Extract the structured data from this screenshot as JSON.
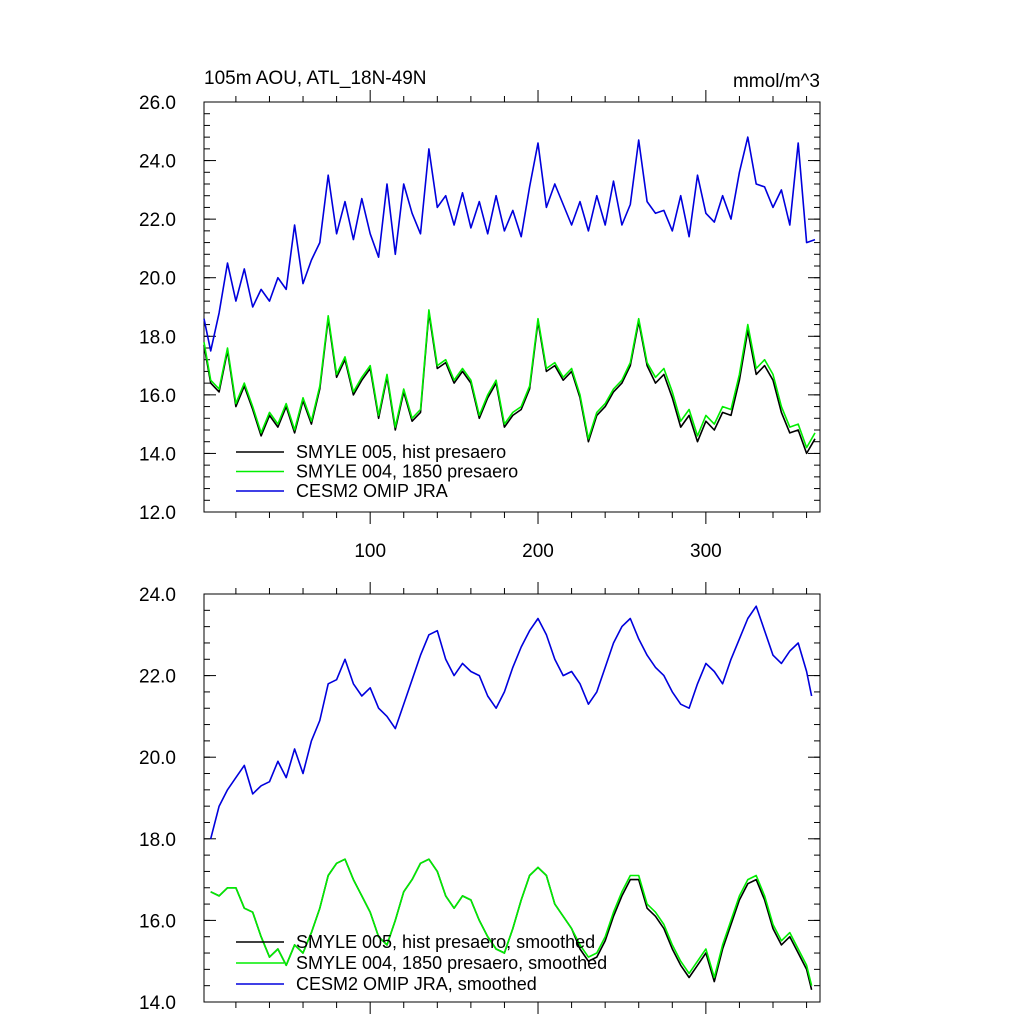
{
  "chart_data": [
    {
      "type": "line",
      "title": "105m AOU, ATL_18N-49N",
      "units": "mmol/m^3",
      "xlabel": "",
      "ylabel": "",
      "xlim": [
        1,
        368
      ],
      "ylim": [
        12.0,
        26.0
      ],
      "x_ticks": [
        100,
        200,
        300
      ],
      "x_tick_labels": [
        "100",
        "200",
        "300"
      ],
      "y_ticks": [
        12.0,
        14.0,
        16.0,
        18.0,
        20.0,
        22.0,
        24.0,
        26.0
      ],
      "y_tick_labels": [
        "12.0",
        "14.0",
        "16.0",
        "18.0",
        "20.0",
        "22.0",
        "24.0",
        "26.0"
      ],
      "grid": false,
      "legend_position": "bottom-left",
      "series": [
        {
          "name": "SMYLE 005, hist presaero",
          "color": "#000000",
          "x": [
            1,
            5,
            10,
            15,
            20,
            25,
            30,
            35,
            40,
            45,
            50,
            55,
            60,
            65,
            70,
            75,
            80,
            85,
            90,
            95,
            100,
            105,
            110,
            115,
            120,
            125,
            130,
            135,
            140,
            145,
            150,
            155,
            160,
            165,
            170,
            175,
            180,
            185,
            190,
            195,
            200,
            205,
            210,
            215,
            220,
            225,
            230,
            235,
            240,
            245,
            250,
            255,
            260,
            265,
            270,
            275,
            280,
            285,
            290,
            295,
            300,
            305,
            310,
            315,
            320,
            325,
            330,
            335,
            340,
            345,
            350,
            355,
            360,
            365
          ],
          "values": [
            17.7,
            16.4,
            16.1,
            17.5,
            15.6,
            16.3,
            15.5,
            14.6,
            15.3,
            14.9,
            15.6,
            14.7,
            15.8,
            15.0,
            16.2,
            18.6,
            16.6,
            17.2,
            16.0,
            16.5,
            16.9,
            15.2,
            16.6,
            14.8,
            16.1,
            15.1,
            15.4,
            18.8,
            16.9,
            17.1,
            16.4,
            16.8,
            16.4,
            15.2,
            15.9,
            16.4,
            14.9,
            15.3,
            15.5,
            16.2,
            18.5,
            16.8,
            17.0,
            16.5,
            16.8,
            15.9,
            14.4,
            15.3,
            15.6,
            16.1,
            16.4,
            17.0,
            18.5,
            17.0,
            16.4,
            16.7,
            15.9,
            14.9,
            15.3,
            14.4,
            15.1,
            14.8,
            15.4,
            15.3,
            16.5,
            18.2,
            16.7,
            17.0,
            16.5,
            15.4,
            14.7,
            14.8,
            14.0,
            14.5
          ]
        },
        {
          "name": "SMYLE 004, 1850 presaero",
          "color": "#00ee00",
          "x": [
            1,
            5,
            10,
            15,
            20,
            25,
            30,
            35,
            40,
            45,
            50,
            55,
            60,
            65,
            70,
            75,
            80,
            85,
            90,
            95,
            100,
            105,
            110,
            115,
            120,
            125,
            130,
            135,
            140,
            145,
            150,
            155,
            160,
            165,
            170,
            175,
            180,
            185,
            190,
            195,
            200,
            205,
            210,
            215,
            220,
            225,
            230,
            235,
            240,
            245,
            250,
            255,
            260,
            265,
            270,
            275,
            280,
            285,
            290,
            295,
            300,
            305,
            310,
            315,
            320,
            325,
            330,
            335,
            340,
            345,
            350,
            355,
            360,
            365
          ],
          "values": [
            17.8,
            16.5,
            16.2,
            17.6,
            15.7,
            16.4,
            15.6,
            14.7,
            15.4,
            15.0,
            15.7,
            14.8,
            15.9,
            15.1,
            16.3,
            18.7,
            16.7,
            17.3,
            16.1,
            16.6,
            17.0,
            15.3,
            16.7,
            14.9,
            16.2,
            15.2,
            15.5,
            18.9,
            17.0,
            17.2,
            16.5,
            16.9,
            16.5,
            15.3,
            16.0,
            16.5,
            15.0,
            15.4,
            15.6,
            16.3,
            18.6,
            16.9,
            17.1,
            16.6,
            16.9,
            16.0,
            14.5,
            15.4,
            15.7,
            16.2,
            16.5,
            17.1,
            18.6,
            17.1,
            16.6,
            16.9,
            16.1,
            15.1,
            15.5,
            14.6,
            15.3,
            15.0,
            15.6,
            15.5,
            16.7,
            18.4,
            16.9,
            17.2,
            16.7,
            15.6,
            14.9,
            15.0,
            14.2,
            14.7
          ]
        },
        {
          "name": "CESM2 OMIP JRA",
          "color": "#0000dd",
          "x": [
            1,
            5,
            10,
            15,
            20,
            25,
            30,
            35,
            40,
            45,
            50,
            55,
            60,
            65,
            70,
            75,
            80,
            85,
            90,
            95,
            100,
            105,
            110,
            115,
            120,
            125,
            130,
            135,
            140,
            145,
            150,
            155,
            160,
            165,
            170,
            175,
            180,
            185,
            190,
            195,
            200,
            205,
            210,
            215,
            220,
            225,
            230,
            235,
            240,
            245,
            250,
            255,
            260,
            265,
            270,
            275,
            280,
            285,
            290,
            295,
            300,
            305,
            310,
            315,
            320,
            325,
            330,
            335,
            340,
            345,
            350,
            355,
            360,
            365
          ],
          "values": [
            18.6,
            17.5,
            18.8,
            20.5,
            19.2,
            20.3,
            19.0,
            19.6,
            19.2,
            20.0,
            19.6,
            21.8,
            19.8,
            20.6,
            21.2,
            23.5,
            21.5,
            22.6,
            21.3,
            22.7,
            21.5,
            20.7,
            23.2,
            20.8,
            23.2,
            22.2,
            21.5,
            24.4,
            22.4,
            22.8,
            21.8,
            22.9,
            21.7,
            22.6,
            21.5,
            22.8,
            21.6,
            22.3,
            21.4,
            23.1,
            24.6,
            22.4,
            23.2,
            22.5,
            21.8,
            22.6,
            21.6,
            22.8,
            21.8,
            23.3,
            21.8,
            22.5,
            24.7,
            22.6,
            22.2,
            22.3,
            21.6,
            22.8,
            21.4,
            23.5,
            22.2,
            21.9,
            22.8,
            22.0,
            23.6,
            24.8,
            23.2,
            23.1,
            22.4,
            23.0,
            21.8,
            24.6,
            21.2,
            21.3
          ]
        }
      ]
    },
    {
      "type": "line",
      "title": "",
      "xlabel": "",
      "ylabel": "",
      "xlim": [
        1,
        368
      ],
      "ylim": [
        14.0,
        24.0
      ],
      "x_ticks": [
        100,
        200,
        300
      ],
      "x_tick_labels": [],
      "y_ticks": [
        14.0,
        16.0,
        18.0,
        20.0,
        22.0,
        24.0
      ],
      "y_tick_labels": [
        "14.0",
        "16.0",
        "18.0",
        "20.0",
        "22.0",
        "24.0"
      ],
      "grid": false,
      "legend_position": "bottom-left",
      "series": [
        {
          "name": "SMYLE 005, hist presaero, smoothed",
          "color": "#000000",
          "x": [
            5,
            10,
            15,
            20,
            25,
            30,
            35,
            40,
            45,
            50,
            55,
            60,
            65,
            70,
            75,
            80,
            85,
            90,
            95,
            100,
            105,
            110,
            115,
            120,
            125,
            130,
            135,
            140,
            145,
            150,
            155,
            160,
            165,
            170,
            175,
            180,
            185,
            190,
            195,
            200,
            205,
            210,
            215,
            220,
            225,
            230,
            235,
            240,
            245,
            250,
            255,
            260,
            265,
            270,
            275,
            280,
            285,
            290,
            295,
            300,
            305,
            310,
            315,
            320,
            325,
            330,
            335,
            340,
            345,
            350,
            355,
            360,
            363
          ],
          "values": [
            16.7,
            16.6,
            16.8,
            16.8,
            16.3,
            16.2,
            15.6,
            15.1,
            15.3,
            14.9,
            15.4,
            15.2,
            15.7,
            16.3,
            17.1,
            17.4,
            17.5,
            17.0,
            16.6,
            16.2,
            15.6,
            15.4,
            16.0,
            16.7,
            17.0,
            17.4,
            17.5,
            17.2,
            16.6,
            16.3,
            16.6,
            16.5,
            16.0,
            15.6,
            15.3,
            15.2,
            15.8,
            16.5,
            17.1,
            17.3,
            17.1,
            16.4,
            16.1,
            15.8,
            15.3,
            15.0,
            15.1,
            15.5,
            16.1,
            16.6,
            17.0,
            17.0,
            16.3,
            16.1,
            15.8,
            15.3,
            14.9,
            14.6,
            14.9,
            15.2,
            14.5,
            15.3,
            15.9,
            16.5,
            16.9,
            17.0,
            16.5,
            15.8,
            15.4,
            15.6,
            15.2,
            14.8,
            14.3
          ]
        },
        {
          "name": "SMYLE 004, 1850 presaero, smoothed",
          "color": "#00ee00",
          "x": [
            5,
            10,
            15,
            20,
            25,
            30,
            35,
            40,
            45,
            50,
            55,
            60,
            65,
            70,
            75,
            80,
            85,
            90,
            95,
            100,
            105,
            110,
            115,
            120,
            125,
            130,
            135,
            140,
            145,
            150,
            155,
            160,
            165,
            170,
            175,
            180,
            185,
            190,
            195,
            200,
            205,
            210,
            215,
            220,
            225,
            230,
            235,
            240,
            245,
            250,
            255,
            260,
            265,
            270,
            275,
            280,
            285,
            290,
            295,
            300,
            305,
            310,
            315,
            320,
            325,
            330,
            335,
            340,
            345,
            350,
            355,
            360,
            363
          ],
          "values": [
            16.7,
            16.6,
            16.8,
            16.8,
            16.3,
            16.2,
            15.6,
            15.1,
            15.3,
            14.9,
            15.4,
            15.2,
            15.7,
            16.3,
            17.1,
            17.4,
            17.5,
            17.0,
            16.6,
            16.2,
            15.6,
            15.4,
            16.0,
            16.7,
            17.0,
            17.4,
            17.5,
            17.2,
            16.6,
            16.3,
            16.6,
            16.5,
            16.0,
            15.6,
            15.3,
            15.2,
            15.8,
            16.5,
            17.1,
            17.3,
            17.1,
            16.4,
            16.1,
            15.8,
            15.4,
            15.1,
            15.2,
            15.6,
            16.2,
            16.7,
            17.1,
            17.1,
            16.4,
            16.2,
            15.9,
            15.4,
            15.0,
            14.7,
            15.0,
            15.3,
            14.6,
            15.4,
            16.0,
            16.6,
            17.0,
            17.1,
            16.6,
            15.9,
            15.5,
            15.7,
            15.3,
            14.9,
            14.4
          ]
        },
        {
          "name": "CESM2 OMIP JRA, smoothed",
          "color": "#0000dd",
          "x": [
            5,
            10,
            15,
            20,
            25,
            30,
            35,
            40,
            45,
            50,
            55,
            60,
            65,
            70,
            75,
            80,
            85,
            90,
            95,
            100,
            105,
            110,
            115,
            120,
            125,
            130,
            135,
            140,
            145,
            150,
            155,
            160,
            165,
            170,
            175,
            180,
            185,
            190,
            195,
            200,
            205,
            210,
            215,
            220,
            225,
            230,
            235,
            240,
            245,
            250,
            255,
            260,
            265,
            270,
            275,
            280,
            285,
            290,
            295,
            300,
            305,
            310,
            315,
            320,
            325,
            330,
            335,
            340,
            345,
            350,
            355,
            360,
            363
          ],
          "values": [
            18.0,
            18.8,
            19.2,
            19.5,
            19.8,
            19.1,
            19.3,
            19.4,
            19.9,
            19.5,
            20.2,
            19.6,
            20.4,
            20.9,
            21.8,
            21.9,
            22.4,
            21.8,
            21.5,
            21.7,
            21.2,
            21.0,
            20.7,
            21.3,
            21.9,
            22.5,
            23.0,
            23.1,
            22.4,
            22.0,
            22.3,
            22.1,
            22.0,
            21.5,
            21.2,
            21.6,
            22.2,
            22.7,
            23.1,
            23.4,
            23.0,
            22.4,
            22.0,
            22.1,
            21.8,
            21.3,
            21.6,
            22.2,
            22.8,
            23.2,
            23.4,
            22.9,
            22.5,
            22.2,
            22.0,
            21.6,
            21.3,
            21.2,
            21.8,
            22.3,
            22.1,
            21.8,
            22.4,
            22.9,
            23.4,
            23.7,
            23.1,
            22.5,
            22.3,
            22.6,
            22.8,
            22.1,
            21.5
          ]
        }
      ]
    }
  ]
}
